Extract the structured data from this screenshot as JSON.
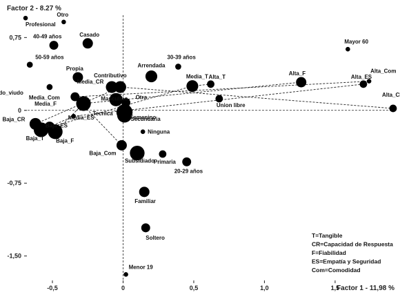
{
  "chart_data": {
    "type": "scatter",
    "xlabel": "Factor 1  -  11,98 %",
    "ylabel": "Factor 2  -  8.27 %",
    "xlim": [
      -0.7,
      1.92
    ],
    "ylim": [
      -1.78,
      0.98
    ],
    "x_ticks": [
      -0.5,
      0,
      0.5,
      1.0,
      1.5
    ],
    "x_tick_labels": [
      "-0,5",
      "0",
      "0,5",
      "1,0",
      "1,5"
    ],
    "y_ticks": [
      0.75,
      0,
      -0.75,
      -1.5
    ],
    "y_tick_labels": [
      "0,75",
      "0",
      "-0,75",
      "-1,50"
    ],
    "grid": false,
    "reference_lines": {
      "x": 0,
      "y": 0,
      "style": "dashed"
    },
    "points": [
      {
        "label": "Profesional",
        "x": -0.69,
        "y": 0.95,
        "size": 2
      },
      {
        "label": "Otro",
        "x": -0.42,
        "y": 0.91,
        "size": 2
      },
      {
        "label": "40-49 años",
        "x": -0.49,
        "y": 0.67,
        "size": 5
      },
      {
        "label": "Casado",
        "x": -0.25,
        "y": 0.69,
        "size": 6
      },
      {
        "label": "50-59 años",
        "x": -0.66,
        "y": 0.47,
        "size": 3
      },
      {
        "label": "Propia",
        "x": -0.32,
        "y": 0.34,
        "size": 6
      },
      {
        "label": "Separado_viudo",
        "x": -0.52,
        "y": 0.24,
        "size": 3
      },
      {
        "label": "Contributivo",
        "x": -0.08,
        "y": 0.24,
        "size": 7
      },
      {
        "label": "Media_CR",
        "x": -0.02,
        "y": 0.24,
        "size": 7
      },
      {
        "label": "Media_Com",
        "x": -0.34,
        "y": 0.14,
        "size": 5
      },
      {
        "label": "Media_F",
        "x": -0.28,
        "y": 0.07,
        "size": 9
      },
      {
        "label": "Masculino",
        "x": -0.05,
        "y": 0.11,
        "size": 8
      },
      {
        "label": "Otra",
        "x": 0.02,
        "y": 0.08,
        "size": 5
      },
      {
        "label": "Femenino",
        "x": 0.01,
        "y": -0.02,
        "size": 10
      },
      {
        "label": "Media_ES",
        "x": -0.35,
        "y": -0.06,
        "size": 2
      },
      {
        "label": "Tecnica",
        "x": -0.02,
        "y": -0.01,
        "size": 3
      },
      {
        "label": "Baja_CR",
        "x": -0.62,
        "y": -0.14,
        "size": 7
      },
      {
        "label": "Baja_ES",
        "x": -0.52,
        "y": -0.17,
        "size": 6
      },
      {
        "label": "Baja_T",
        "x": -0.58,
        "y": -0.2,
        "size": 9
      },
      {
        "label": "Baja_F",
        "x": -0.48,
        "y": -0.22,
        "size": 9
      },
      {
        "label": "Secundaria",
        "x": 0.01,
        "y": -0.05,
        "size": 9
      },
      {
        "label": "Ninguna",
        "x": 0.14,
        "y": -0.22,
        "size": 2
      },
      {
        "label": "Baja_Com",
        "x": -0.01,
        "y": -0.36,
        "size": 6
      },
      {
        "label": "Subsidiado",
        "x": 0.1,
        "y": -0.44,
        "size": 9
      },
      {
        "label": "Primaria",
        "x": 0.28,
        "y": -0.45,
        "size": 4
      },
      {
        "label": "20-29 años",
        "x": 0.45,
        "y": -0.53,
        "size": 5
      },
      {
        "label": "Familiar",
        "x": 0.15,
        "y": -0.84,
        "size": 6
      },
      {
        "label": "Soltero",
        "x": 0.16,
        "y": -1.21,
        "size": 5
      },
      {
        "label": "Menor 19",
        "x": 0.02,
        "y": -1.69,
        "size": 2
      },
      {
        "label": "Arrendada",
        "x": 0.2,
        "y": 0.35,
        "size": 7
      },
      {
        "label": "30-39 años",
        "x": 0.39,
        "y": 0.45,
        "size": 3
      },
      {
        "label": "Media_T",
        "x": 0.49,
        "y": 0.25,
        "size": 7
      },
      {
        "label": "Alta_T",
        "x": 0.62,
        "y": 0.27,
        "size": 4
      },
      {
        "label": "Union libre",
        "x": 0.68,
        "y": 0.12,
        "size": 4
      },
      {
        "label": "Alta_F",
        "x": 1.26,
        "y": 0.29,
        "size": 6
      },
      {
        "label": "Mayor 60",
        "x": 1.59,
        "y": 0.63,
        "size": 2
      },
      {
        "label": "Alta_ES",
        "x": 1.7,
        "y": 0.27,
        "size": 4
      },
      {
        "label": "Alta_Com",
        "x": 1.74,
        "y": 0.3,
        "size": 2
      },
      {
        "label": "Alta_CR",
        "x": 1.91,
        "y": 0.02,
        "size": 4
      }
    ],
    "links": [
      [
        "Baja_T",
        "Media_T"
      ],
      [
        "Media_T",
        "Alta_T"
      ],
      [
        "Baja_CR",
        "Media_CR"
      ],
      [
        "Media_CR",
        "Alta_CR"
      ],
      [
        "Baja_F",
        "Media_F"
      ],
      [
        "Media_F",
        "Alta_F"
      ],
      [
        "Baja_ES",
        "Media_ES"
      ],
      [
        "Media_ES",
        "Alta_ES"
      ],
      [
        "Baja_Com",
        "Media_Com"
      ],
      [
        "Media_Com",
        "Alta_Com"
      ]
    ],
    "legend": {
      "placement": "bottom-right",
      "entries": [
        "T=Tangible",
        "CR=Capacidad de Respuesta",
        "F=Fiabilidad",
        "ES=Empatía y Seguridad",
        "Com=Comodidad"
      ]
    }
  }
}
